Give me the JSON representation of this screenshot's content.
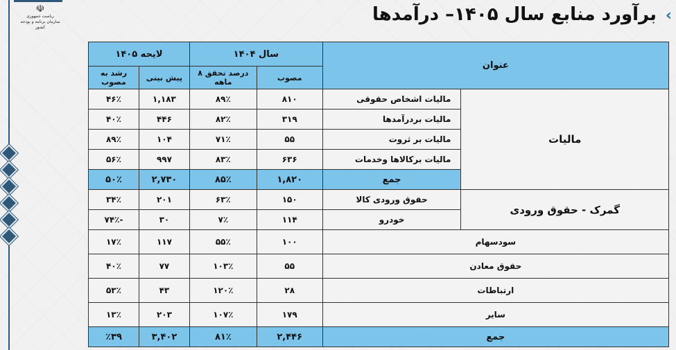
{
  "title": "برآورد منابع سال ۱۴۰۵– درآمدها",
  "logo": {
    "line1": "ریاست جمهوری",
    "line2": "سازمان برنامه و بودجه کشور"
  },
  "header": {
    "title_col": "عنوان",
    "year1404": "سال ۱۴۰۴",
    "bill1405": "لایحه ۱۴۰۵",
    "approved": "مصوب",
    "realization": "درصد تحقق ۸ ماهه",
    "forecast": "پیش بینی",
    "growth": "رشد به مصوب"
  },
  "groups": {
    "taxes": {
      "label": "مالیات",
      "rows": [
        {
          "name": "مالیات اشخاص حقوقی",
          "approved": "۸۱۰",
          "realization": "۸۹٪",
          "forecast": "۱,۱۸۳",
          "growth": "۴۶٪"
        },
        {
          "name": "مالیات بردرآمدها",
          "approved": "۳۱۹",
          "realization": "۸۲٪",
          "forecast": "۴۴۶",
          "growth": "۴۰٪"
        },
        {
          "name": "مالیات بر ثروت",
          "approved": "۵۵",
          "realization": "۷۱٪",
          "forecast": "۱۰۴",
          "growth": "۸۹٪"
        },
        {
          "name": "مالیات برکالاها وخدمات",
          "approved": "۶۳۶",
          "realization": "۸۳٪",
          "forecast": "۹۹۷",
          "growth": "۵۶٪"
        }
      ],
      "subtotal": {
        "name": "جمع",
        "approved": "۱,۸۲۰",
        "realization": "۸۵٪",
        "forecast": "۲,۷۳۰",
        "growth": "۵۰٪"
      }
    },
    "customs": {
      "label": "گمرک - حقوق ورودی",
      "rows": [
        {
          "name": "حقوق ورودی کالا",
          "approved": "۱۵۰",
          "realization": "۶۳٪",
          "forecast": "۲۰۱",
          "growth": "۳۴٪"
        },
        {
          "name": "خودرو",
          "approved": "۱۱۴",
          "realization": "۷٪",
          "forecast": "۳۰",
          "growth": "-۷۴٪"
        }
      ]
    }
  },
  "others": [
    {
      "name": "سودسهام",
      "approved": "۱۰۰",
      "realization": "۵۵٪",
      "forecast": "۱۱۷",
      "growth": "۱۷٪"
    },
    {
      "name": "حقوق معادن",
      "approved": "۵۵",
      "realization": "۱۰۳٪",
      "forecast": "۷۷",
      "growth": "۴۰٪"
    },
    {
      "name": "ارتباطات",
      "approved": "۲۸",
      "realization": "۱۲۰٪",
      "forecast": "۴۳",
      "growth": "۵۳٪"
    },
    {
      "name": "سایر",
      "approved": "۱۷۹",
      "realization": "۱۰۷٪",
      "forecast": "۲۰۳",
      "growth": "۱۳٪"
    }
  ],
  "total": {
    "name": "جمع",
    "approved": "۲,۴۴۶",
    "realization": "۸۱٪",
    "forecast": "۳,۴۰۲",
    "growth": "٪۳۹"
  },
  "colors": {
    "header": "#7cc4ea",
    "accent": "#2f5878"
  }
}
